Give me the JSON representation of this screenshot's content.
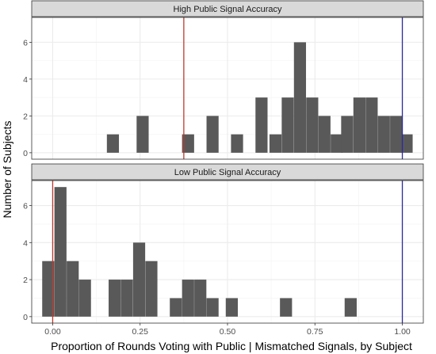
{
  "chart_data": {
    "type": "bar",
    "xlabel": "Proportion of Rounds Voting with Public | Mismatched Signals, by Subject",
    "ylabel": "Number of Subjects",
    "xlim": [
      -0.06,
      1.06
    ],
    "xticks": [
      0,
      0.25,
      0.5,
      0.75,
      1
    ],
    "xtick_labels": [
      "0.00",
      "0.25",
      "0.50",
      "0.75",
      "1.00"
    ],
    "bin_width": 0.0345,
    "grid": true,
    "legend": "none",
    "colors": {
      "bar": "#595959",
      "strip": "#d9d9d9",
      "grid_major": "#ebebeb",
      "grid_minor": "#f5f5f5",
      "mean_line": "#c0392b",
      "blue_line": "#2a2aa0"
    },
    "panels": [
      {
        "title": "High Public Signal Accuracy",
        "ylim": [
          -0.35,
          7.35
        ],
        "yticks": [
          0,
          2,
          4,
          6
        ],
        "ytick_labels": [
          "0",
          "2",
          "4",
          "6"
        ],
        "bin_starts": [
          0.155,
          0.24,
          0.37,
          0.44,
          0.51,
          0.58,
          0.62,
          0.655,
          0.69,
          0.725,
          0.76,
          0.795,
          0.825,
          0.86,
          0.895,
          0.93,
          0.965,
          0.995
        ],
        "counts": [
          1,
          2,
          1,
          2,
          1,
          3,
          1,
          3,
          6,
          3,
          2,
          1,
          2,
          3,
          3,
          2,
          2,
          1
        ],
        "vlines": [
          {
            "x": 0.375,
            "color": "#c0392b"
          },
          {
            "x": 1.0,
            "color": "#2a2aa0"
          }
        ]
      },
      {
        "title": "Low Public Signal Accuracy",
        "ylim": [
          -0.35,
          7.35
        ],
        "yticks": [
          0,
          2,
          4,
          6
        ],
        "ytick_labels": [
          "0",
          "2",
          "4",
          "6"
        ],
        "bin_starts": [
          -0.03,
          0.005,
          0.04,
          0.075,
          0.16,
          0.195,
          0.23,
          0.265,
          0.335,
          0.37,
          0.405,
          0.44,
          0.495,
          0.65,
          0.835
        ],
        "counts": [
          3,
          7,
          3,
          2,
          2,
          2,
          4,
          3,
          1,
          2,
          2,
          1,
          1,
          1,
          1
        ],
        "vlines": [
          {
            "x": 0.0,
            "color": "#c0392b"
          },
          {
            "x": 1.0,
            "color": "#2a2aa0"
          }
        ]
      }
    ]
  }
}
